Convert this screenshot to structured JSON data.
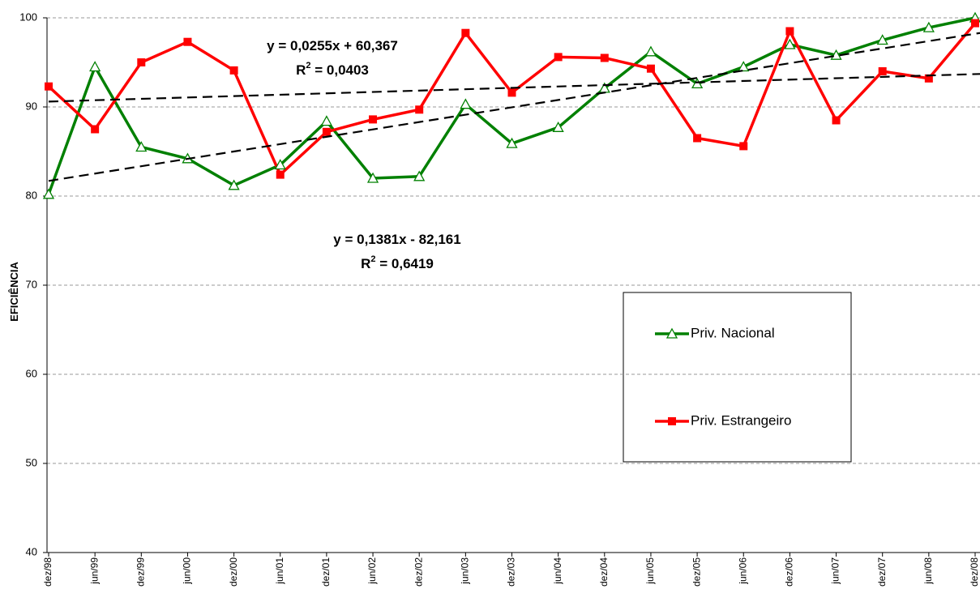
{
  "chart_data": {
    "type": "line",
    "y_label": "EFICIÊNCIA",
    "categories": [
      "dez/98",
      "jun/99",
      "dez/99",
      "jun/00",
      "dez/00",
      "jun/01",
      "dez/01",
      "jun/02",
      "dez/02",
      "jun/03",
      "dez/03",
      "jun/04",
      "dez/04",
      "jun/05",
      "dez/05",
      "jun/06",
      "dez/06",
      "jun/07",
      "dez/07",
      "jun/08",
      "dez/08"
    ],
    "series": [
      {
        "name": "Priv. Nacional",
        "color": "#008000",
        "marker": "triangle",
        "values": [
          80.2,
          94.5,
          85.5,
          84.2,
          81.2,
          83.5,
          88.4,
          82.0,
          82.2,
          90.3,
          85.9,
          87.7,
          92.1,
          96.2,
          92.6,
          94.5,
          97.0,
          95.8,
          97.5,
          98.9,
          100.0
        ]
      },
      {
        "name": "Priv. Estrangeiro",
        "color": "#ff0000",
        "marker": "square",
        "values": [
          92.3,
          87.5,
          95.0,
          97.3,
          94.1,
          82.4,
          87.2,
          88.6,
          89.7,
          98.3,
          91.6,
          95.6,
          95.5,
          94.3,
          86.5,
          85.6,
          98.5,
          88.5,
          94.0,
          93.2,
          99.4
        ]
      }
    ],
    "trendlines": [
      {
        "equation": "y = 0,0255x + 60,367",
        "r2_prefix": "R",
        "r2_sup": "2",
        "r2_text": " = 0,0403",
        "values": [
          90.6,
          93.7
        ]
      },
      {
        "equation": "y = 0,1381x - 82,161",
        "r2_prefix": "R",
        "r2_sup": "2",
        "r2_text": " = 0,6419",
        "values": [
          81.7,
          98.3
        ]
      }
    ],
    "ylim": [
      40,
      100
    ],
    "yticks": [
      40,
      50,
      60,
      70,
      80,
      90,
      100
    ],
    "grid": true
  }
}
